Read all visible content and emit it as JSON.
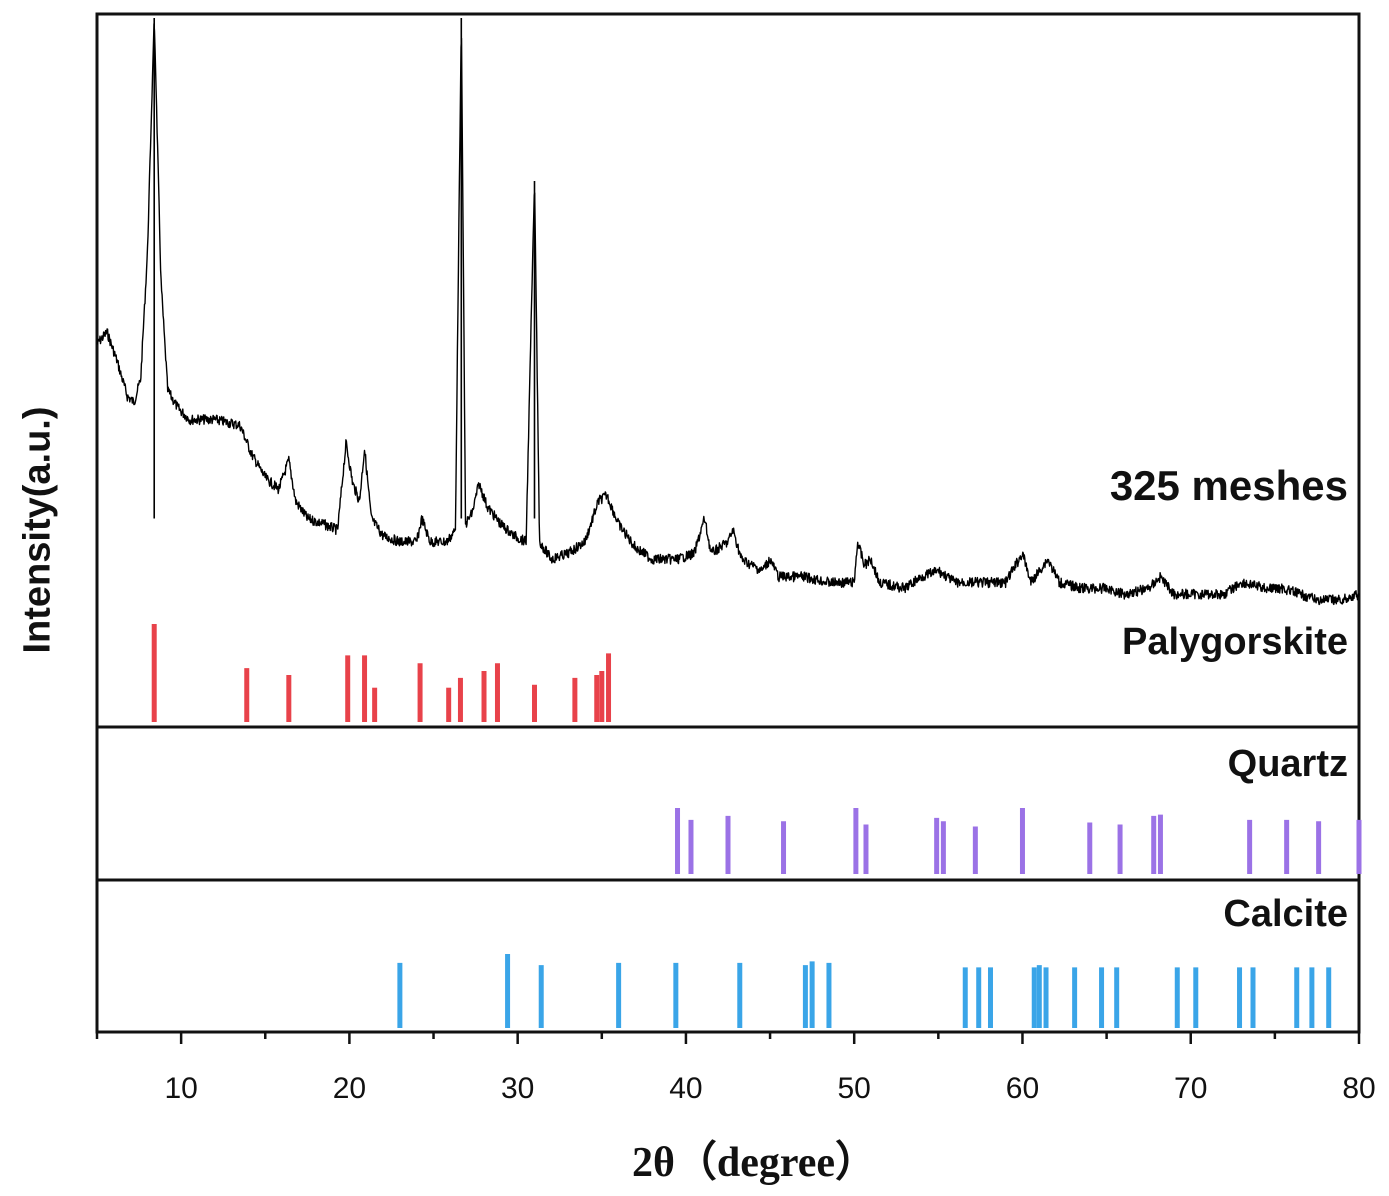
{
  "chart_data": {
    "type": "line",
    "sample_label": "325 meshes",
    "ylabel": "Intensity(a.u.)",
    "xlabel": "2θ（degree）",
    "xlim": [
      5,
      80
    ],
    "xticks": [
      10,
      20,
      30,
      40,
      50,
      60,
      70,
      80
    ],
    "xticklabels": [
      "10",
      "20",
      "30",
      "40",
      "50",
      "60",
      "70",
      "80"
    ],
    "series": [
      {
        "name": "325 meshes",
        "color": "#000000",
        "points": [
          [
            5.0,
            0.44
          ],
          [
            5.6,
            0.46
          ],
          [
            6.2,
            0.41
          ],
          [
            6.8,
            0.35
          ],
          [
            7.2,
            0.34
          ],
          [
            7.6,
            0.38
          ],
          [
            8.0,
            0.6
          ],
          [
            8.4,
            1.0
          ],
          [
            8.8,
            0.55
          ],
          [
            9.2,
            0.36
          ],
          [
            9.8,
            0.33
          ],
          [
            10.5,
            0.31
          ],
          [
            12.0,
            0.31
          ],
          [
            13.5,
            0.3
          ],
          [
            14.2,
            0.25
          ],
          [
            15.0,
            0.21
          ],
          [
            15.8,
            0.19
          ],
          [
            16.4,
            0.24
          ],
          [
            16.8,
            0.17
          ],
          [
            17.5,
            0.14
          ],
          [
            18.5,
            0.13
          ],
          [
            19.3,
            0.12
          ],
          [
            19.8,
            0.27
          ],
          [
            20.2,
            0.2
          ],
          [
            20.6,
            0.17
          ],
          [
            20.9,
            0.26
          ],
          [
            21.3,
            0.14
          ],
          [
            22.0,
            0.11
          ],
          [
            23.0,
            0.1
          ],
          [
            24.0,
            0.1
          ],
          [
            24.3,
            0.14
          ],
          [
            24.8,
            0.1
          ],
          [
            25.8,
            0.1
          ],
          [
            26.3,
            0.12
          ],
          [
            26.65,
            1.0
          ],
          [
            26.9,
            0.13
          ],
          [
            27.3,
            0.15
          ],
          [
            27.7,
            0.2
          ],
          [
            28.2,
            0.16
          ],
          [
            29.0,
            0.13
          ],
          [
            29.8,
            0.11
          ],
          [
            30.5,
            0.1
          ],
          [
            31.0,
            0.72
          ],
          [
            31.3,
            0.1
          ],
          [
            32.0,
            0.07
          ],
          [
            33.0,
            0.08
          ],
          [
            34.0,
            0.1
          ],
          [
            34.8,
            0.17
          ],
          [
            35.3,
            0.18
          ],
          [
            36.0,
            0.13
          ],
          [
            37.0,
            0.09
          ],
          [
            38.0,
            0.07
          ],
          [
            39.5,
            0.07
          ],
          [
            40.5,
            0.08
          ],
          [
            41.1,
            0.14
          ],
          [
            41.5,
            0.08
          ],
          [
            42.5,
            0.1
          ],
          [
            42.8,
            0.12
          ],
          [
            43.3,
            0.07
          ],
          [
            44.5,
            0.05
          ],
          [
            45.0,
            0.07
          ],
          [
            45.5,
            0.04
          ],
          [
            47.0,
            0.04
          ],
          [
            48.5,
            0.03
          ],
          [
            50.0,
            0.03
          ],
          [
            50.2,
            0.1
          ],
          [
            50.6,
            0.06
          ],
          [
            51.0,
            0.07
          ],
          [
            51.5,
            0.03
          ],
          [
            53.0,
            0.02
          ],
          [
            54.0,
            0.04
          ],
          [
            55.0,
            0.05
          ],
          [
            56.0,
            0.03
          ],
          [
            57.5,
            0.03
          ],
          [
            59.0,
            0.03
          ],
          [
            60.0,
            0.08
          ],
          [
            60.5,
            0.03
          ],
          [
            61.5,
            0.07
          ],
          [
            62.2,
            0.03
          ],
          [
            63.5,
            0.02
          ],
          [
            65.0,
            0.02
          ],
          [
            66.0,
            0.01
          ],
          [
            67.5,
            0.02
          ],
          [
            68.2,
            0.04
          ],
          [
            69.0,
            0.01
          ],
          [
            70.5,
            0.01
          ],
          [
            72.0,
            0.01
          ],
          [
            73.0,
            0.03
          ],
          [
            74.5,
            0.02
          ],
          [
            75.5,
            0.02
          ],
          [
            76.5,
            0.01
          ],
          [
            77.5,
            0.0
          ],
          [
            79.0,
            0.0
          ],
          [
            80.0,
            0.01
          ]
        ]
      }
    ],
    "reference_patterns": [
      {
        "name": "Palygorskite",
        "color": "#e8424a",
        "peaks": [
          [
            8.4,
            1.0
          ],
          [
            13.9,
            0.55
          ],
          [
            16.4,
            0.48
          ],
          [
            19.9,
            0.68
          ],
          [
            20.9,
            0.68
          ],
          [
            21.5,
            0.35
          ],
          [
            24.2,
            0.6
          ],
          [
            25.9,
            0.35
          ],
          [
            26.6,
            0.45
          ],
          [
            28.0,
            0.52
          ],
          [
            28.8,
            0.6
          ],
          [
            31.0,
            0.38
          ],
          [
            33.4,
            0.45
          ],
          [
            34.7,
            0.48
          ],
          [
            35.0,
            0.52
          ],
          [
            35.4,
            0.7
          ]
        ]
      },
      {
        "name": "Quartz",
        "color": "#9b72e6",
        "peaks": [
          [
            39.5,
            1.0
          ],
          [
            40.3,
            0.82
          ],
          [
            42.5,
            0.88
          ],
          [
            45.8,
            0.8
          ],
          [
            50.1,
            1.0
          ],
          [
            50.7,
            0.75
          ],
          [
            54.9,
            0.85
          ],
          [
            55.3,
            0.8
          ],
          [
            57.2,
            0.72
          ],
          [
            60.0,
            1.0
          ],
          [
            64.0,
            0.78
          ],
          [
            65.8,
            0.75
          ],
          [
            67.8,
            0.88
          ],
          [
            68.2,
            0.9
          ],
          [
            73.5,
            0.82
          ],
          [
            75.7,
            0.82
          ],
          [
            77.6,
            0.8
          ],
          [
            80.0,
            0.82
          ]
        ]
      },
      {
        "name": "Calcite",
        "color": "#3aa5e8",
        "peaks": [
          [
            23.0,
            0.88
          ],
          [
            29.4,
            1.0
          ],
          [
            31.4,
            0.85
          ],
          [
            36.0,
            0.88
          ],
          [
            39.4,
            0.88
          ],
          [
            43.2,
            0.88
          ],
          [
            47.1,
            0.85
          ],
          [
            47.5,
            0.9
          ],
          [
            48.5,
            0.88
          ],
          [
            56.6,
            0.82
          ],
          [
            57.4,
            0.82
          ],
          [
            58.1,
            0.82
          ],
          [
            60.7,
            0.82
          ],
          [
            61.0,
            0.85
          ],
          [
            61.4,
            0.82
          ],
          [
            63.1,
            0.82
          ],
          [
            64.7,
            0.82
          ],
          [
            65.6,
            0.82
          ],
          [
            69.2,
            0.82
          ],
          [
            70.3,
            0.82
          ],
          [
            72.9,
            0.82
          ],
          [
            73.7,
            0.82
          ],
          [
            76.3,
            0.82
          ],
          [
            77.2,
            0.82
          ],
          [
            78.2,
            0.82
          ]
        ]
      }
    ]
  }
}
